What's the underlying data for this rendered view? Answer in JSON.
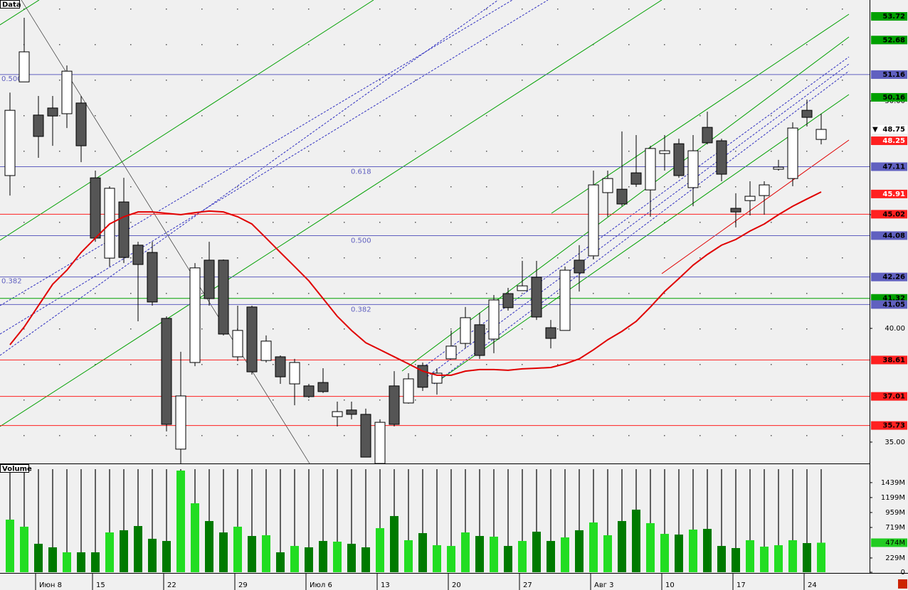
{
  "chart_data": {
    "type": "candlestick",
    "title": "Data",
    "categories": [
      null,
      null,
      "Июн 8",
      null,
      null,
      null,
      "15",
      null,
      null,
      null,
      null,
      "22",
      null,
      null,
      null,
      null,
      "29",
      null,
      null,
      null,
      null,
      "Июл 6",
      null,
      null,
      null,
      null,
      "13",
      null,
      null,
      null,
      null,
      "20",
      null,
      null,
      null,
      null,
      "27",
      null,
      null,
      null,
      null,
      "Авг 3",
      null,
      null,
      null,
      null,
      "10",
      null,
      null,
      null,
      null,
      "17",
      null,
      null,
      null,
      null,
      "24",
      null
    ],
    "open": [
      46.72,
      50.84,
      49.38,
      49.69,
      49.44,
      49.91,
      46.62,
      43.09,
      45.56,
      43.66,
      43.34,
      40.44,
      34.69,
      38.5,
      43.0,
      43.0,
      38.75,
      40.94,
      38.59,
      38.75,
      37.56,
      37.47,
      37.62,
      36.12,
      36.41,
      36.22,
      34.06,
      37.47,
      36.72,
      38.37,
      37.59,
      38.66,
      39.34,
      40.16,
      39.53,
      41.53,
      41.66,
      42.25,
      40.03,
      39.91,
      43.0,
      43.19,
      45.97,
      46.12,
      46.84,
      46.09,
      47.69,
      48.12,
      46.19,
      48.84,
      48.25,
      45.28,
      45.62,
      45.84,
      47.0,
      46.59,
      49.59,
      48.31
    ],
    "high": [
      50.37,
      53.66,
      50.22,
      50.22,
      51.56,
      50.22,
      46.94,
      46.25,
      46.62,
      43.81,
      43.81,
      40.53,
      38.97,
      42.87,
      43.81,
      43.03,
      41.0,
      41.0,
      39.69,
      38.81,
      38.66,
      37.56,
      38.25,
      36.78,
      36.78,
      36.47,
      36.0,
      38.12,
      38.03,
      38.5,
      38.25,
      39.91,
      40.94,
      40.69,
      41.47,
      41.78,
      42.97,
      42.97,
      40.37,
      42.72,
      43.66,
      46.94,
      46.94,
      48.66,
      48.5,
      48.03,
      48.5,
      48.34,
      48.5,
      49.53,
      48.34,
      45.94,
      46.47,
      46.47,
      47.41,
      49.06,
      50.06,
      49.44
    ],
    "low": [
      45.84,
      50.84,
      47.5,
      48.03,
      48.81,
      47.31,
      43.81,
      42.72,
      42.87,
      40.31,
      41.0,
      35.47,
      34.06,
      38.34,
      41.0,
      39.69,
      38.56,
      37.97,
      38.5,
      37.56,
      36.62,
      36.94,
      37.16,
      35.69,
      36.0,
      34.34,
      34.06,
      35.69,
      36.69,
      37.25,
      37.09,
      38.66,
      39.12,
      38.66,
      38.91,
      40.78,
      41.66,
      40.37,
      39.12,
      39.91,
      41.62,
      43.03,
      44.91,
      45.37,
      46.22,
      44.91,
      46.94,
      46.62,
      45.37,
      48.09,
      46.47,
      44.44,
      44.97,
      45.0,
      46.94,
      46.25,
      48.88,
      48.09
    ],
    "close": [
      49.59,
      52.16,
      48.44,
      49.34,
      51.31,
      48.03,
      43.97,
      46.16,
      43.12,
      42.81,
      41.16,
      35.78,
      37.03,
      42.66,
      41.31,
      39.75,
      39.91,
      38.09,
      39.44,
      37.87,
      38.5,
      37.0,
      37.22,
      36.34,
      36.22,
      34.34,
      35.87,
      35.78,
      37.78,
      37.41,
      38.03,
      39.22,
      40.47,
      38.81,
      41.25,
      40.91,
      41.87,
      40.5,
      39.56,
      42.56,
      42.44,
      46.31,
      46.59,
      45.47,
      46.34,
      47.91,
      47.81,
      46.72,
      47.81,
      48.16,
      46.78,
      45.12,
      45.81,
      46.31,
      47.09,
      48.81,
      49.28,
      48.75
    ],
    "up_color": "#ffffff",
    "down_color": "#555555",
    "ylim": [
      34.06,
      54.44
    ],
    "yticks": [
      {
        "value": 35,
        "label": "35.00"
      },
      {
        "value": 40,
        "label": "40.00"
      },
      {
        "value": 45,
        "label": "45.00"
      },
      {
        "value": 50,
        "label": "50.00"
      }
    ],
    "ma": {
      "color": "#e00000",
      "values": [
        39.28,
        40.06,
        41.0,
        41.94,
        42.56,
        43.34,
        43.97,
        44.59,
        44.91,
        45.12,
        45.12,
        45.06,
        45.0,
        45.09,
        45.16,
        45.12,
        44.91,
        44.59,
        43.97,
        43.34,
        42.72,
        42.09,
        41.31,
        40.53,
        39.91,
        39.37,
        39.06,
        38.75,
        38.44,
        38.12,
        37.94,
        37.94,
        38.12,
        38.19,
        38.19,
        38.16,
        38.22,
        38.25,
        38.28,
        38.44,
        38.66,
        39.06,
        39.5,
        39.87,
        40.31,
        40.94,
        41.62,
        42.19,
        42.78,
        43.25,
        43.66,
        43.91,
        44.28,
        44.59,
        45.0,
        45.37,
        45.69,
        46.0
      ]
    },
    "levels": [
      {
        "value": 53.72,
        "color": "#00a000",
        "text_color": "#000000",
        "line": false
      },
      {
        "value": 52.68,
        "color": "#00a000",
        "text_color": "#000000",
        "line": false
      },
      {
        "value": 51.16,
        "color": "#6060c0",
        "text_color": "#000000",
        "line": true
      },
      {
        "value": 50.16,
        "color": "#00a000",
        "text_color": "#000000",
        "line": false
      },
      {
        "value": 48.25,
        "color": "#ff2020",
        "text_color": "#ffffff",
        "line": false
      },
      {
        "value": 47.11,
        "color": "#6060c0",
        "text_color": "#000000",
        "line": true
      },
      {
        "value": 45.91,
        "color": "#ff2020",
        "text_color": "#ffffff",
        "line": false
      },
      {
        "value": 45.02,
        "color": "#ff2020",
        "text_color": "#000000",
        "line": true
      },
      {
        "value": 44.08,
        "color": "#6060c0",
        "text_color": "#000000",
        "line": true
      },
      {
        "value": 42.26,
        "color": "#6060c0",
        "text_color": "#000000",
        "line": true
      },
      {
        "value": 41.32,
        "color": "#00a000",
        "text_color": "#000000",
        "line": true
      },
      {
        "value": 41.05,
        "color": "#6060c0",
        "text_color": "#000000",
        "line": true
      },
      {
        "value": 38.61,
        "color": "#ff2020",
        "text_color": "#000000",
        "line": true
      },
      {
        "value": 37.01,
        "color": "#ff2020",
        "text_color": "#000000",
        "line": true
      },
      {
        "value": 35.73,
        "color": "#ff2020",
        "text_color": "#000000",
        "line": true
      }
    ],
    "last_price": {
      "value": 48.75,
      "marker": "▼"
    },
    "fib_labels_left": [
      {
        "label": "0.500",
        "value": 51.16
      },
      {
        "label": "0.382",
        "value": 42.26
      }
    ],
    "fib_labels_right": [
      {
        "label": "0.618",
        "value": 47.11
      },
      {
        "label": "0.500",
        "value": 44.08
      },
      {
        "label": "0.382",
        "value": 41.05
      }
    ],
    "volume": {
      "title": "Volume",
      "values": [
        845,
        731,
        457,
        400,
        320,
        320,
        320,
        639,
        674,
        742,
        537,
        502,
        1632,
        1107,
        822,
        639,
        731,
        582,
        594,
        320,
        422,
        400,
        502,
        491,
        457,
        400,
        708,
        902,
        514,
        628,
        434,
        422,
        639,
        582,
        571,
        422,
        502,
        651,
        502,
        559,
        674,
        799,
        594,
        822,
        1005,
        788,
        616,
        605,
        685,
        696,
        422,
        388,
        514,
        411,
        434,
        514,
        468,
        474
      ],
      "up_color": "#22dd22",
      "down_color": "#007a00",
      "ylim": [
        0,
        1655
      ],
      "yticks": [
        {
          "value": 1439,
          "label": "1439M"
        },
        {
          "value": 1199,
          "label": "1199M"
        },
        {
          "value": 959,
          "label": "959M"
        },
        {
          "value": 719,
          "label": "719M"
        },
        {
          "value": 229,
          "label": "229M"
        },
        0
      ],
      "current": {
        "value": 474,
        "label": "474M",
        "color": "#22cc22"
      }
    }
  }
}
